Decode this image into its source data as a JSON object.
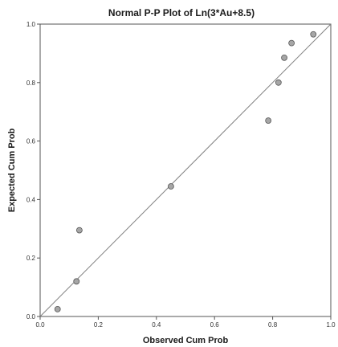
{
  "chart_data": {
    "type": "scatter",
    "title": "Normal P-P Plot of Ln(3*Au+8.5)",
    "xlabel": "Observed Cum Prob",
    "ylabel": "Expected Cum Prob",
    "xlim": [
      0.0,
      1.0
    ],
    "ylim": [
      0.0,
      1.0
    ],
    "x_ticks": [
      "0.0",
      "0.2",
      "0.4",
      "0.6",
      "0.8",
      "1.0"
    ],
    "y_ticks": [
      "0.0",
      "0.2",
      "0.4",
      "0.6",
      "0.8",
      "1.0"
    ],
    "grid": false,
    "reference_line": {
      "from": [
        0.0,
        0.0
      ],
      "to": [
        1.0,
        1.0
      ]
    },
    "points": [
      {
        "x": 0.06,
        "y": 0.025
      },
      {
        "x": 0.125,
        "y": 0.12
      },
      {
        "x": 0.135,
        "y": 0.295
      },
      {
        "x": 0.45,
        "y": 0.445
      },
      {
        "x": 0.785,
        "y": 0.67
      },
      {
        "x": 0.82,
        "y": 0.8
      },
      {
        "x": 0.84,
        "y": 0.885
      },
      {
        "x": 0.865,
        "y": 0.935
      },
      {
        "x": 0.94,
        "y": 0.965
      }
    ]
  },
  "colors": {
    "point_fill": "#a6a6a6",
    "point_stroke": "#555555",
    "line": "#808080",
    "frame": "#555555"
  }
}
